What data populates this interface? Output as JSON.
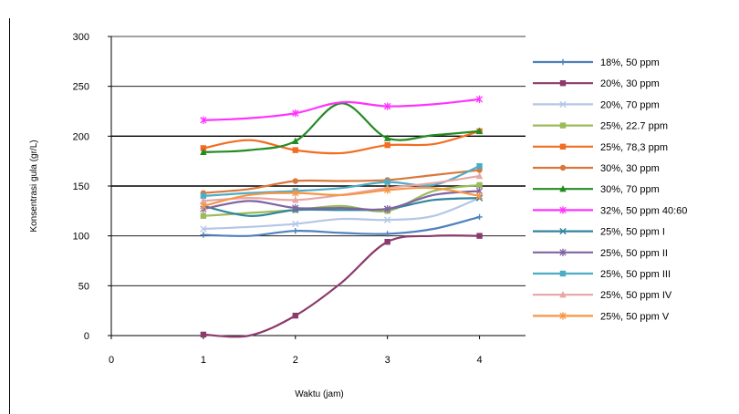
{
  "chart_data": {
    "type": "line",
    "title": "",
    "xlabel": "Waktu (jam)",
    "ylabel": "Konsentrasi gula (gr/L)",
    "xlim": [
      0,
      4.5
    ],
    "ylim": [
      0,
      300
    ],
    "xticks": [
      0,
      1,
      2,
      3,
      4
    ],
    "yticks": [
      0,
      50,
      100,
      150,
      200,
      250,
      300
    ],
    "gridlines": [
      150,
      200
    ],
    "grid": "horizontal",
    "legend_position": "right",
    "x": [
      1,
      1.5,
      2,
      2.5,
      3,
      3.5,
      4
    ],
    "series": [
      {
        "name": "18%, 50 ppm",
        "color": "#4f81bd",
        "marker": "plus",
        "values": [
          101,
          100,
          105,
          103,
          102,
          107,
          119
        ]
      },
      {
        "name": "20%, 30  ppm",
        "color": "#8b3a6b",
        "marker": "square",
        "values": [
          1,
          0,
          20,
          53,
          94,
          100,
          100
        ]
      },
      {
        "name": "20%, 70 ppm",
        "color": "#b4c6e7",
        "marker": "x",
        "values": [
          107,
          109,
          112,
          117,
          116,
          120,
          138
        ]
      },
      {
        "name": "25%, 22.7 ppm",
        "color": "#9bbb59",
        "marker": "square",
        "values": [
          120,
          123,
          126,
          130,
          125,
          145,
          151
        ]
      },
      {
        "name": "25%, 78,3 ppm",
        "color": "#f36c21",
        "marker": "square",
        "values": [
          188,
          196,
          186,
          183,
          191,
          192,
          205
        ]
      },
      {
        "name": "30%, 30 ppm",
        "color": "#d9773a",
        "marker": "circle",
        "values": [
          143,
          147,
          155,
          155,
          156,
          161,
          166
        ]
      },
      {
        "name": "30%, 70 ppm",
        "color": "#228b22",
        "marker": "triangle",
        "values": [
          184,
          186,
          195,
          233,
          198,
          201,
          205
        ]
      },
      {
        "name": "32%, 50 ppm 40:60",
        "color": "#ff33ff",
        "marker": "star",
        "values": [
          216,
          218,
          223,
          234,
          230,
          232,
          237
        ]
      },
      {
        "name": "25%, 50 ppm I",
        "color": "#31859c",
        "marker": "x",
        "values": [
          130,
          120,
          126,
          126,
          127,
          136,
          138
        ]
      },
      {
        "name": "25%, 50 ppm II",
        "color": "#8064a2",
        "marker": "star",
        "values": [
          127,
          135,
          128,
          128,
          127,
          141,
          145
        ]
      },
      {
        "name": "25%, 50 ppm III",
        "color": "#4bacc6",
        "marker": "square",
        "values": [
          140,
          143,
          145,
          148,
          154,
          151,
          170
        ]
      },
      {
        "name": "25%, 50 ppm IV",
        "color": "#e6a6a6",
        "marker": "triangle",
        "values": [
          135,
          138,
          136,
          141,
          148,
          153,
          160
        ]
      },
      {
        "name": "25%, 50 ppm V",
        "color": "#f79646",
        "marker": "star",
        "values": [
          130,
          141,
          143,
          141,
          146,
          148,
          140
        ]
      }
    ]
  }
}
